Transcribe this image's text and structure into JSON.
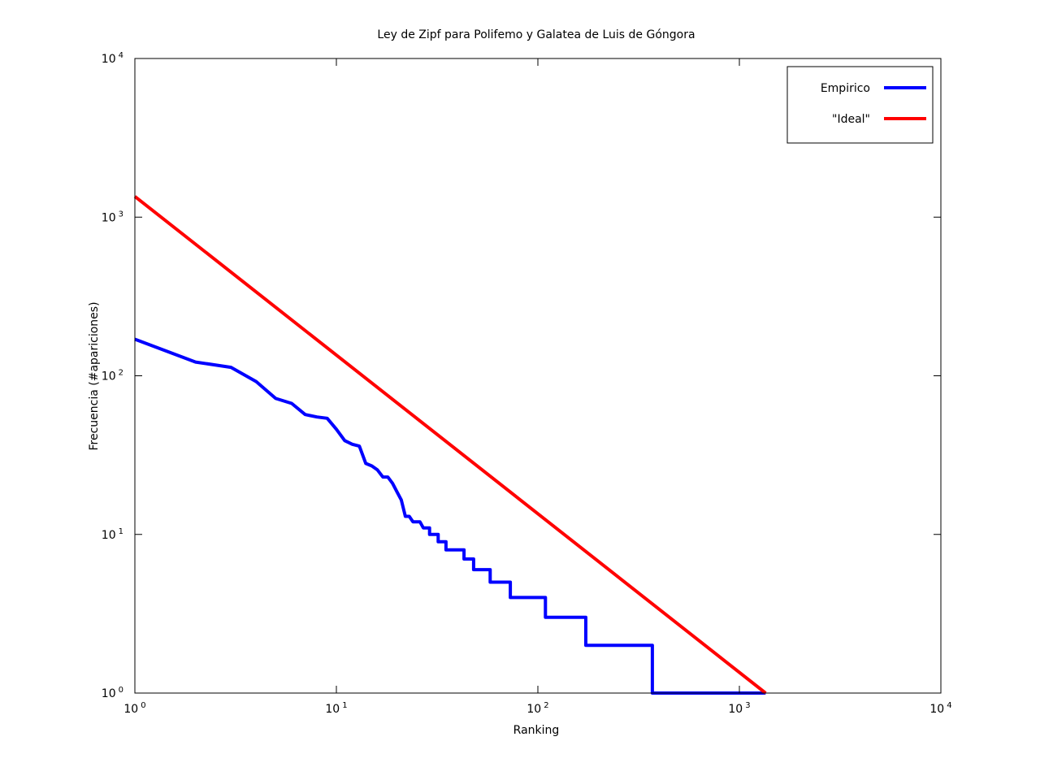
{
  "chart_data": {
    "type": "line",
    "title": "Ley de Zipf para Polifemo y Galatea de Luis de Góngora",
    "xlabel": "Ranking",
    "ylabel": "Frecuencia (#apariciones)",
    "x_scale": "log",
    "y_scale": "log",
    "xlim": [
      1,
      10000
    ],
    "ylim": [
      1,
      10000
    ],
    "grid": false,
    "legend_position": "top-right",
    "x_ticks": [
      {
        "base": "10",
        "exp": "0",
        "value": 1
      },
      {
        "base": "10",
        "exp": "1",
        "value": 10
      },
      {
        "base": "10",
        "exp": "2",
        "value": 100
      },
      {
        "base": "10",
        "exp": "3",
        "value": 1000
      },
      {
        "base": "10",
        "exp": "4",
        "value": 10000
      }
    ],
    "y_ticks": [
      {
        "base": "10",
        "exp": "0",
        "value": 1
      },
      {
        "base": "10",
        "exp": "1",
        "value": 10
      },
      {
        "base": "10",
        "exp": "2",
        "value": 100
      },
      {
        "base": "10",
        "exp": "3",
        "value": 1000
      },
      {
        "base": "10",
        "exp": "4",
        "value": 10000
      }
    ],
    "series": [
      {
        "name": "Empirico",
        "color": "#0000ff",
        "points": [
          [
            1,
            170
          ],
          [
            2,
            122
          ],
          [
            3,
            113
          ],
          [
            4,
            92
          ],
          [
            5,
            72
          ],
          [
            6,
            67
          ],
          [
            7,
            57
          ],
          [
            8,
            55
          ],
          [
            9,
            54
          ],
          [
            10,
            46
          ],
          [
            11,
            39
          ],
          [
            12,
            37
          ],
          [
            13,
            36
          ],
          [
            14,
            28
          ],
          [
            15,
            27
          ],
          [
            16,
            25.5
          ],
          [
            17,
            23
          ],
          [
            18,
            23
          ],
          [
            19,
            21
          ],
          [
            20,
            18.5
          ],
          [
            21,
            16.5
          ],
          [
            22,
            13
          ],
          [
            23,
            13
          ],
          [
            24,
            12
          ],
          [
            26,
            12
          ],
          [
            27,
            11
          ],
          [
            29,
            11
          ],
          [
            29,
            10
          ],
          [
            32,
            10
          ],
          [
            32,
            9
          ],
          [
            35,
            9
          ],
          [
            35,
            8
          ],
          [
            43,
            8
          ],
          [
            43,
            7
          ],
          [
            48,
            7
          ],
          [
            48,
            6
          ],
          [
            58,
            6
          ],
          [
            58,
            5
          ],
          [
            73,
            5
          ],
          [
            73,
            4
          ],
          [
            109,
            4
          ],
          [
            109,
            3
          ],
          [
            173,
            3
          ],
          [
            173,
            2
          ],
          [
            370,
            2
          ],
          [
            370,
            1
          ],
          [
            1350,
            1
          ]
        ]
      },
      {
        "name": "\"Ideal\"",
        "color": "#ff0000",
        "points": [
          [
            1,
            1350
          ],
          [
            1350,
            1
          ]
        ]
      }
    ]
  }
}
